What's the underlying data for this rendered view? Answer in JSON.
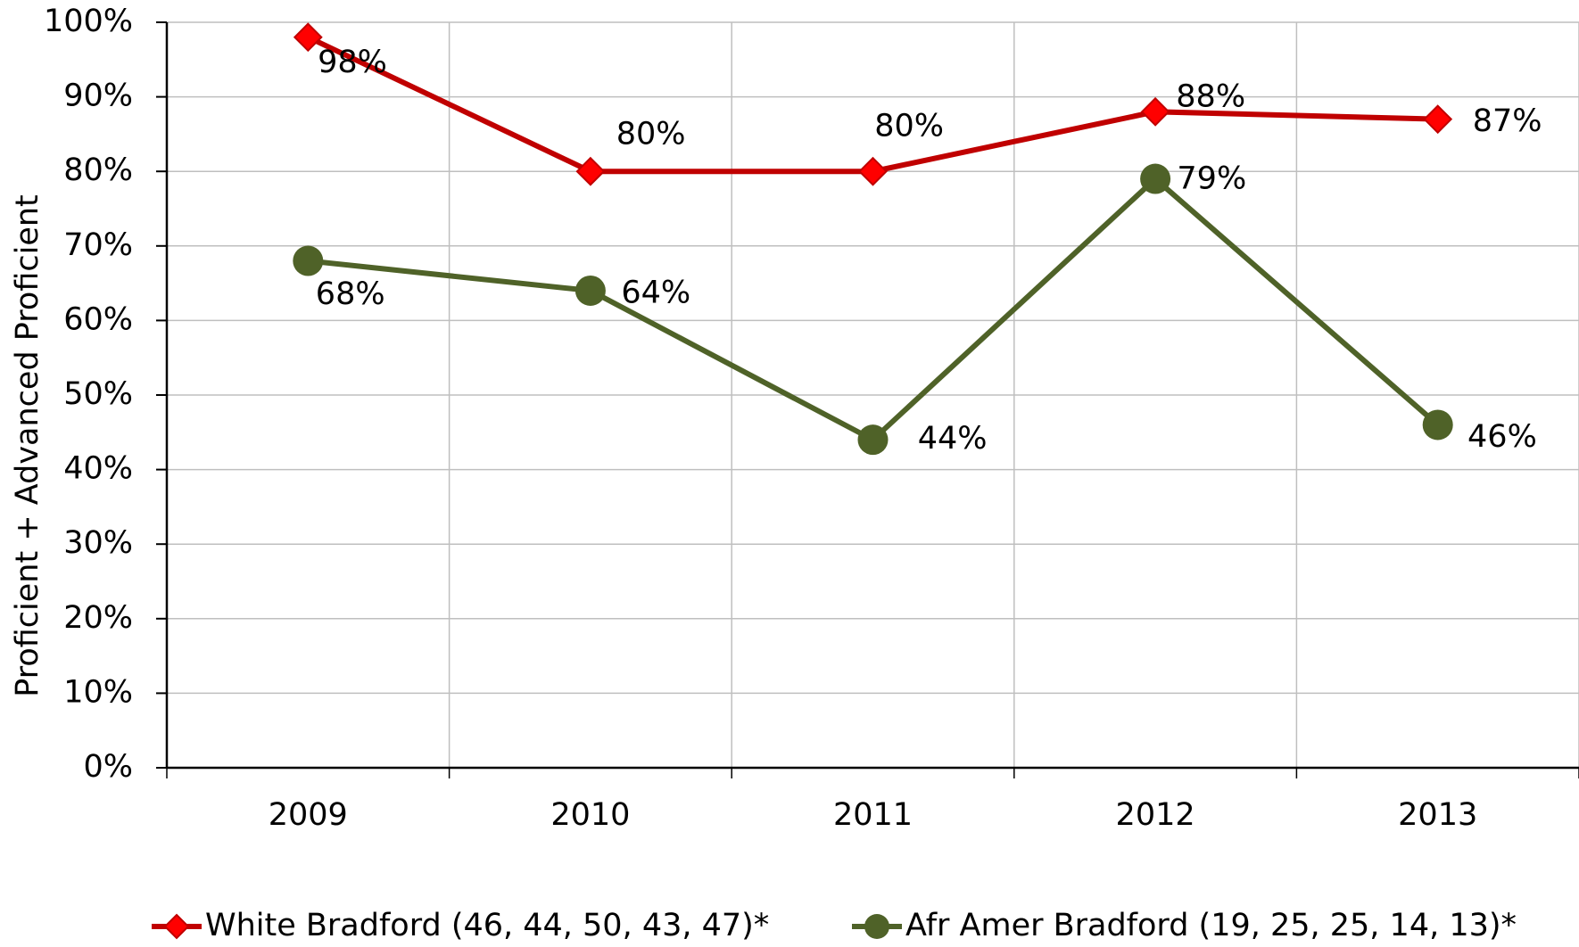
{
  "chart_data": {
    "type": "line",
    "y_label": "Proficient + Advanced Proficient",
    "categories": [
      "2009",
      "2010",
      "2011",
      "2012",
      "2013"
    ],
    "series": [
      {
        "name": "White Bradford (46, 44, 50, 43, 47)*",
        "color": "#c00000",
        "marker": "diamond",
        "values": [
          98,
          80,
          80,
          88,
          87
        ],
        "value_labels": [
          "98%",
          "80%",
          "80%",
          "88%",
          "87%"
        ]
      },
      {
        "name": "Afr Amer Bradford (19, 25, 25, 14, 13)*",
        "color": "#4f6228",
        "marker": "circle",
        "values": [
          68,
          64,
          44,
          79,
          46
        ],
        "value_labels": [
          "68%",
          "64%",
          "44%",
          "79%",
          "46%"
        ]
      }
    ],
    "ylim": [
      0,
      100
    ],
    "yticks": [
      {
        "value": 0,
        "label": "0%"
      },
      {
        "value": 10,
        "label": "10%"
      },
      {
        "value": 20,
        "label": "20%"
      },
      {
        "value": 30,
        "label": "30%"
      },
      {
        "value": 40,
        "label": "40%"
      },
      {
        "value": 50,
        "label": "50%"
      },
      {
        "value": 60,
        "label": "60%"
      },
      {
        "value": 70,
        "label": "70%"
      },
      {
        "value": 80,
        "label": "80%"
      },
      {
        "value": 90,
        "label": "90%"
      },
      {
        "value": 100,
        "label": "100%"
      }
    ],
    "grid": true,
    "legend": "bottom"
  }
}
